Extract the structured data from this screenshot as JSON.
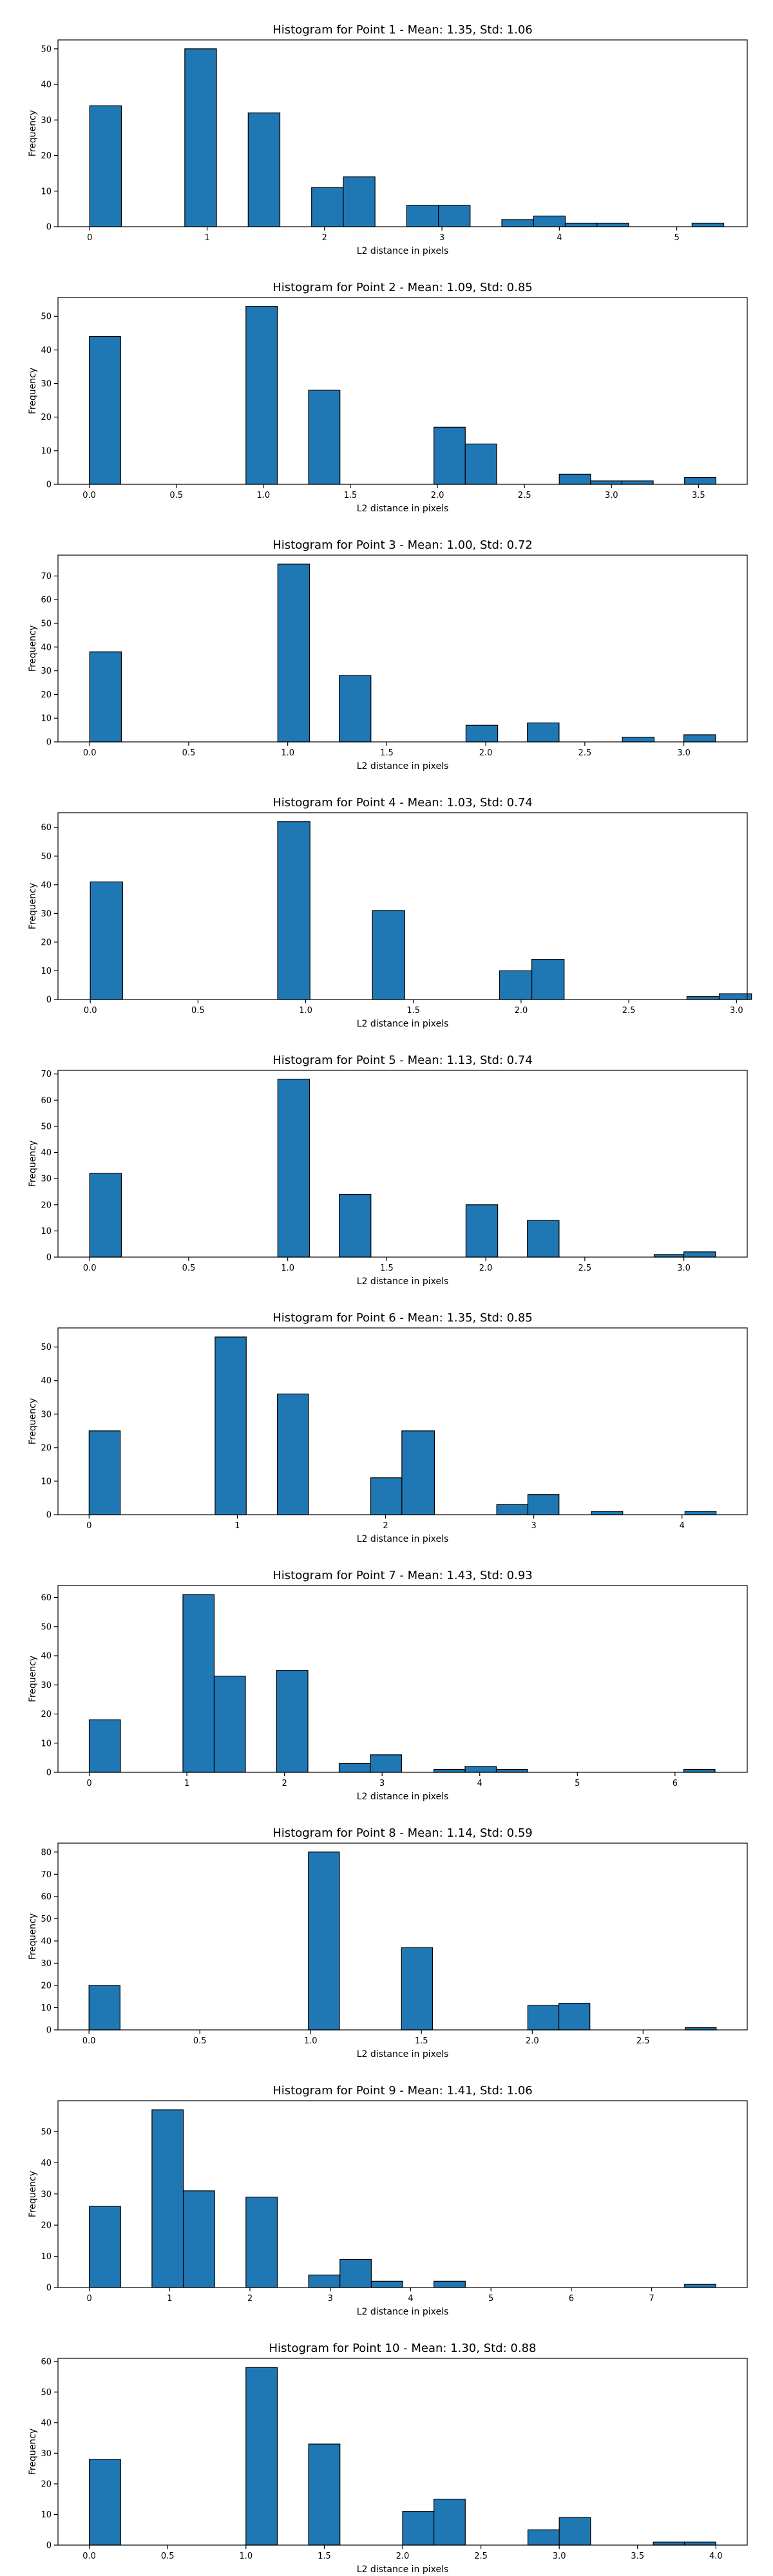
{
  "colors": {
    "bar": "#1f77b4",
    "edge": "#000000",
    "background": "#ffffff"
  },
  "chart_data": [
    {
      "type": "bar",
      "title": "Histogram for Point 1 - Mean: 1.35, Std: 1.06",
      "xlabel": "L2 distance in pixels",
      "ylabel": "Frequency",
      "xlim": [
        -0.27,
        5.6
      ],
      "ylim": [
        0,
        52.5
      ],
      "xticks": [
        0,
        1,
        2,
        3,
        4,
        5
      ],
      "xtick_labels": [
        "0",
        "1",
        "2",
        "3",
        "4",
        "5"
      ],
      "yticks": [
        0,
        10,
        20,
        30,
        40,
        50
      ],
      "bins": [
        [
          0.0,
          0.27,
          34
        ],
        [
          0.81,
          1.08,
          50
        ],
        [
          1.35,
          1.62,
          32
        ],
        [
          1.89,
          2.16,
          11
        ],
        [
          2.16,
          2.43,
          14
        ],
        [
          2.7,
          2.97,
          6
        ],
        [
          2.97,
          3.24,
          6
        ],
        [
          3.51,
          3.78,
          2
        ],
        [
          3.78,
          4.05,
          3
        ],
        [
          4.05,
          4.32,
          1
        ],
        [
          4.32,
          4.59,
          1
        ],
        [
          5.13,
          5.4,
          1
        ]
      ]
    },
    {
      "type": "bar",
      "title": "Histogram for Point 2 - Mean: 1.09, Std: 0.85",
      "xlabel": "L2 distance in pixels",
      "ylabel": "Frequency",
      "xlim": [
        -0.18,
        3.78
      ],
      "ylim": [
        0,
        55.6
      ],
      "xticks": [
        0,
        0.5,
        1,
        1.5,
        2,
        2.5,
        3,
        3.5
      ],
      "xtick_labels": [
        "0.0",
        "0.5",
        "1.0",
        "1.5",
        "2.0",
        "2.5",
        "3.0",
        "3.5"
      ],
      "yticks": [
        0,
        10,
        20,
        30,
        40,
        50
      ],
      "bins": [
        [
          0.0,
          0.18,
          44
        ],
        [
          0.9,
          1.08,
          53
        ],
        [
          1.26,
          1.44,
          28
        ],
        [
          1.98,
          2.16,
          17
        ],
        [
          2.16,
          2.34,
          12
        ],
        [
          2.7,
          2.88,
          3
        ],
        [
          2.88,
          3.06,
          1
        ],
        [
          3.06,
          3.24,
          1
        ],
        [
          3.42,
          3.6,
          2
        ]
      ]
    },
    {
      "type": "bar",
      "title": "Histogram for Point 3 - Mean: 1.00, Std: 0.72",
      "xlabel": "L2 distance in pixels",
      "ylabel": "Frequency",
      "xlim": [
        -0.16,
        3.32
      ],
      "ylim": [
        0,
        78.8
      ],
      "xticks": [
        0,
        0.5,
        1,
        1.5,
        2,
        2.5,
        3
      ],
      "xtick_labels": [
        "0.0",
        "0.5",
        "1.0",
        "1.5",
        "2.0",
        "2.5",
        "3.0"
      ],
      "yticks": [
        0,
        10,
        20,
        30,
        40,
        50,
        60,
        70
      ],
      "bins": [
        [
          0.0,
          0.16,
          38
        ],
        [
          0.95,
          1.11,
          75
        ],
        [
          1.26,
          1.42,
          28
        ],
        [
          1.9,
          2.06,
          7
        ],
        [
          2.21,
          2.37,
          8
        ],
        [
          2.69,
          2.85,
          2
        ],
        [
          3.0,
          3.16,
          3
        ]
      ]
    },
    {
      "type": "bar",
      "title": "Histogram for Point 4 - Mean: 1.03, Std: 0.74",
      "xlabel": "L2 distance in pixels",
      "ylabel": "Frequency",
      "xlim": [
        -0.15,
        3.05
      ],
      "ylim": [
        0,
        65.1
      ],
      "xticks": [
        0,
        0.5,
        1,
        1.5,
        2,
        2.5,
        3
      ],
      "xtick_labels": [
        "0.0",
        "0.5",
        "1.0",
        "1.5",
        "2.0",
        "2.5",
        "3.0"
      ],
      "yticks": [
        0,
        10,
        20,
        30,
        40,
        50,
        60
      ],
      "bins": [
        [
          0.0,
          0.15,
          41
        ],
        [
          0.87,
          1.02,
          62
        ],
        [
          1.31,
          1.46,
          31
        ],
        [
          1.9,
          2.05,
          10
        ],
        [
          2.05,
          2.2,
          14
        ],
        [
          2.77,
          2.92,
          1
        ],
        [
          2.92,
          3.07,
          2
        ]
      ]
    },
    {
      "type": "bar",
      "title": "Histogram for Point 5 - Mean: 1.13, Std: 0.74",
      "xlabel": "L2 distance in pixels",
      "ylabel": "Frequency",
      "xlim": [
        -0.16,
        3.32
      ],
      "ylim": [
        0,
        71.4
      ],
      "xticks": [
        0,
        0.5,
        1,
        1.5,
        2,
        2.5,
        3
      ],
      "xtick_labels": [
        "0.0",
        "0.5",
        "1.0",
        "1.5",
        "2.0",
        "2.5",
        "3.0"
      ],
      "yticks": [
        0,
        10,
        20,
        30,
        40,
        50,
        60,
        70
      ],
      "bins": [
        [
          0.0,
          0.16,
          32
        ],
        [
          0.95,
          1.11,
          68
        ],
        [
          1.26,
          1.42,
          24
        ],
        [
          1.9,
          2.06,
          20
        ],
        [
          2.21,
          2.37,
          14
        ],
        [
          2.85,
          3.0,
          1
        ],
        [
          3.0,
          3.16,
          2
        ]
      ]
    },
    {
      "type": "bar",
      "title": "Histogram for Point 6 - Mean: 1.35, Std: 0.85",
      "xlabel": "L2 distance in pixels",
      "ylabel": "Frequency",
      "xlim": [
        -0.21,
        4.44
      ],
      "ylim": [
        0,
        55.7
      ],
      "xticks": [
        0,
        1,
        2,
        3,
        4
      ],
      "xtick_labels": [
        "0",
        "1",
        "2",
        "3",
        "4"
      ],
      "yticks": [
        0,
        10,
        20,
        30,
        40,
        50
      ],
      "bins": [
        [
          0.0,
          0.21,
          25
        ],
        [
          0.85,
          1.06,
          53
        ],
        [
          1.27,
          1.48,
          36
        ],
        [
          1.9,
          2.11,
          11
        ],
        [
          2.11,
          2.33,
          25
        ],
        [
          2.75,
          2.96,
          3
        ],
        [
          2.96,
          3.17,
          6
        ],
        [
          3.39,
          3.6,
          1
        ],
        [
          4.02,
          4.23,
          1
        ]
      ]
    },
    {
      "type": "bar",
      "title": "Histogram for Point 7 - Mean: 1.43, Std: 0.93",
      "xlabel": "L2 distance in pixels",
      "ylabel": "Frequency",
      "xlim": [
        -0.32,
        6.74
      ],
      "ylim": [
        0,
        64.1
      ],
      "xticks": [
        0,
        1,
        2,
        3,
        4,
        5,
        6
      ],
      "xtick_labels": [
        "0",
        "1",
        "2",
        "3",
        "4",
        "5",
        "6"
      ],
      "yticks": [
        0,
        10,
        20,
        30,
        40,
        50,
        60
      ],
      "bins": [
        [
          0.0,
          0.32,
          18
        ],
        [
          0.96,
          1.28,
          61
        ],
        [
          1.28,
          1.6,
          33
        ],
        [
          1.92,
          2.24,
          35
        ],
        [
          2.56,
          2.88,
          3
        ],
        [
          2.88,
          3.2,
          6
        ],
        [
          3.53,
          3.85,
          1
        ],
        [
          3.85,
          4.17,
          2
        ],
        [
          4.17,
          4.49,
          1
        ],
        [
          6.09,
          6.41,
          1
        ]
      ]
    },
    {
      "type": "bar",
      "title": "Histogram for Point 8 - Mean: 1.14, Std: 0.59",
      "xlabel": "L2 distance in pixels",
      "ylabel": "Frequency",
      "xlim": [
        -0.14,
        2.97
      ],
      "ylim": [
        0,
        84
      ],
      "xticks": [
        0,
        0.5,
        1,
        1.5,
        2,
        2.5
      ],
      "xtick_labels": [
        "0.0",
        "0.5",
        "1.0",
        "1.5",
        "2.0",
        "2.5"
      ],
      "yticks": [
        0,
        10,
        20,
        30,
        40,
        50,
        60,
        70,
        80
      ],
      "bins": [
        [
          0.0,
          0.14,
          20
        ],
        [
          0.99,
          1.13,
          80
        ],
        [
          1.41,
          1.55,
          37
        ],
        [
          1.98,
          2.12,
          11
        ],
        [
          2.12,
          2.26,
          12
        ],
        [
          2.69,
          2.83,
          1
        ]
      ]
    },
    {
      "type": "bar",
      "title": "Histogram for Point 9 - Mean: 1.41, Std: 1.06",
      "xlabel": "L2 distance in pixels",
      "ylabel": "Frequency",
      "xlim": [
        -0.39,
        8.19
      ],
      "ylim": [
        0,
        59.9
      ],
      "xticks": [
        0,
        1,
        2,
        3,
        4,
        5,
        6,
        7
      ],
      "xtick_labels": [
        "0",
        "1",
        "2",
        "3",
        "4",
        "5",
        "6",
        "7"
      ],
      "yticks": [
        0,
        10,
        20,
        30,
        40,
        50
      ],
      "bins": [
        [
          0.0,
          0.39,
          26
        ],
        [
          0.78,
          1.17,
          57
        ],
        [
          1.17,
          1.56,
          31
        ],
        [
          1.95,
          2.34,
          29
        ],
        [
          2.73,
          3.12,
          4
        ],
        [
          3.12,
          3.51,
          9
        ],
        [
          3.51,
          3.9,
          2
        ],
        [
          4.29,
          4.68,
          2
        ],
        [
          7.41,
          7.8,
          1
        ]
      ]
    },
    {
      "type": "bar",
      "title": "Histogram for Point 10 - Mean: 1.30, Std: 0.88",
      "xlabel": "L2 distance in pixels",
      "ylabel": "Frequency",
      "xlim": [
        -0.2,
        4.2
      ],
      "ylim": [
        0,
        61
      ],
      "xticks": [
        0,
        0.5,
        1,
        1.5,
        2,
        2.5,
        3,
        3.5,
        4
      ],
      "xtick_labels": [
        "0.0",
        "0.5",
        "1.0",
        "1.5",
        "2.0",
        "2.5",
        "3.0",
        "3.5",
        "4.0"
      ],
      "yticks": [
        0,
        10,
        20,
        30,
        40,
        50,
        60
      ],
      "bins": [
        [
          0.0,
          0.2,
          28
        ],
        [
          1.0,
          1.2,
          58
        ],
        [
          1.4,
          1.6,
          33
        ],
        [
          2.0,
          2.2,
          11
        ],
        [
          2.2,
          2.4,
          15
        ],
        [
          2.8,
          3.0,
          5
        ],
        [
          3.0,
          3.2,
          9
        ],
        [
          3.6,
          3.8,
          1
        ],
        [
          3.8,
          4.0,
          1
        ]
      ]
    }
  ]
}
